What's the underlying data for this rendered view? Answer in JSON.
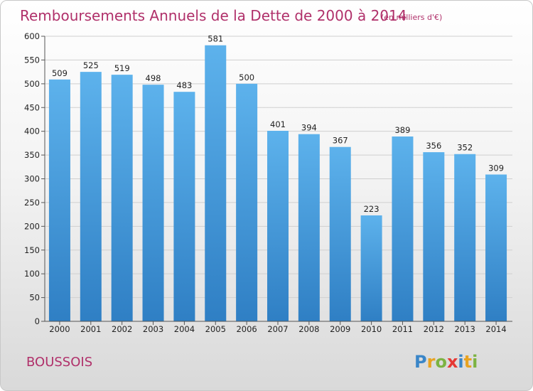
{
  "chart_data": {
    "type": "bar",
    "title": "Remboursements Annuels de la Dette de 2000 à 2014",
    "subtitle": "(en milliers d'€)",
    "categories": [
      "2000",
      "2001",
      "2002",
      "2003",
      "2004",
      "2005",
      "2006",
      "2007",
      "2008",
      "2009",
      "2010",
      "2011",
      "2012",
      "2013",
      "2014"
    ],
    "values": [
      509,
      525,
      519,
      498,
      483,
      581,
      500,
      401,
      394,
      367,
      223,
      389,
      356,
      352,
      309
    ],
    "ylim": [
      0,
      600
    ],
    "yticks": [
      0,
      50,
      100,
      150,
      200,
      250,
      300,
      350,
      400,
      450,
      500,
      550,
      600
    ],
    "xlabel": "",
    "ylabel": "",
    "grid": true,
    "bar_color": "#4b9fdf"
  },
  "footer": {
    "town": "BOUSSOIS",
    "logo_letters": [
      "P",
      "r",
      "o",
      "x",
      "i",
      "t",
      "i"
    ],
    "logo_colors": [
      "#3a86c8",
      "#e8a321",
      "#7cb342",
      "#e53935",
      "#3a86c8",
      "#e8a321",
      "#7cb342"
    ]
  }
}
